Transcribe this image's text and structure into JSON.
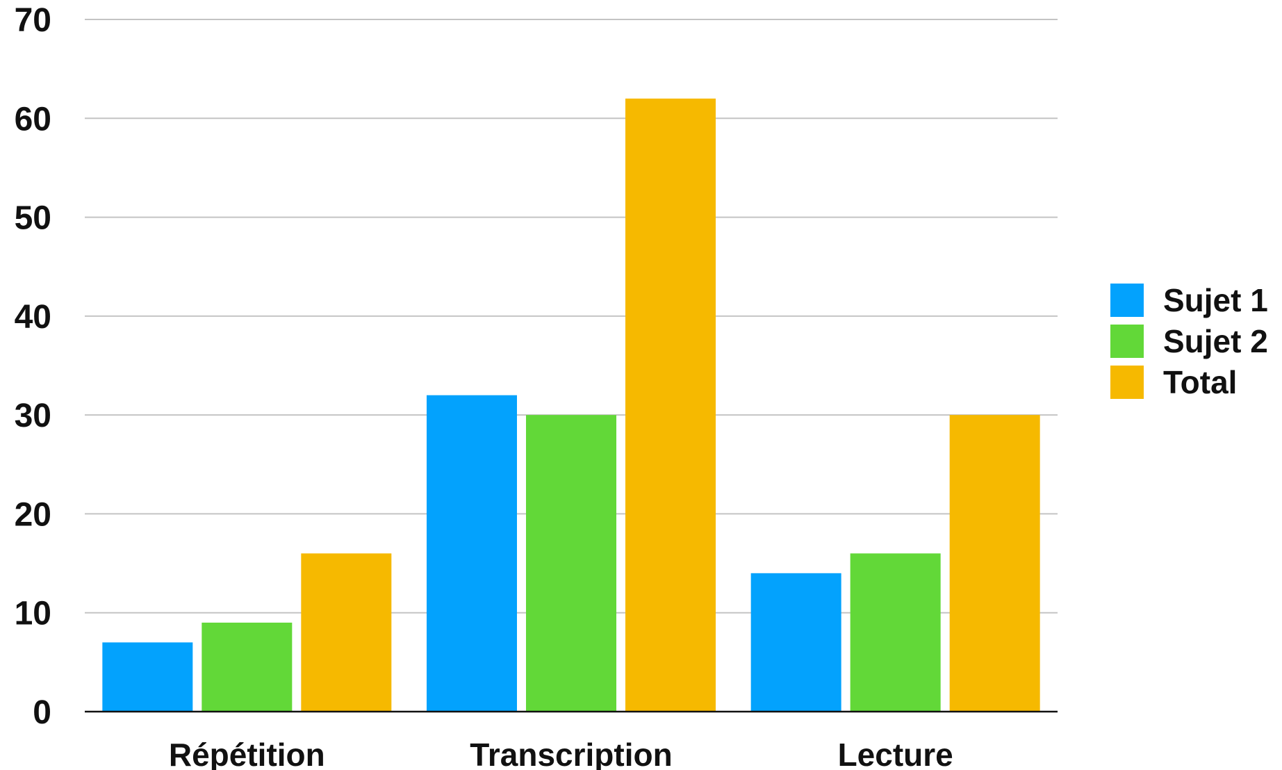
{
  "chart_data": {
    "type": "bar",
    "title": "",
    "xlabel": "",
    "ylabel": "",
    "categories": [
      "Répétition",
      "Transcription",
      "Lecture"
    ],
    "series": [
      {
        "name": "Sujet 1",
        "color": "#03a2fd",
        "values": [
          7,
          32,
          14
        ]
      },
      {
        "name": "Sujet 2",
        "color": "#62d838",
        "values": [
          9,
          30,
          16
        ]
      },
      {
        "name": "Total",
        "color": "#f6b900",
        "values": [
          16,
          62,
          30
        ]
      }
    ],
    "ylim": [
      0,
      70
    ],
    "yticks": [
      0,
      10,
      20,
      30,
      40,
      50,
      60,
      70
    ],
    "grid": true,
    "legend": "right"
  }
}
